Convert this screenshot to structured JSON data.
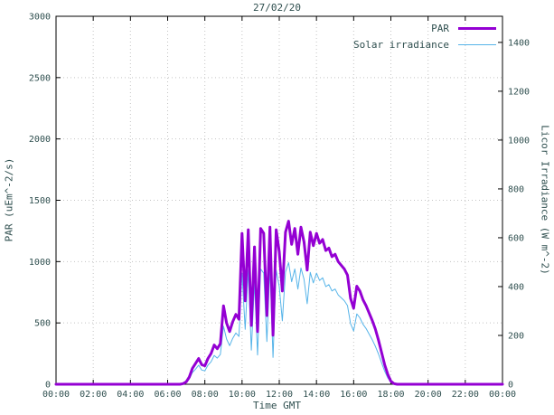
{
  "chart": {
    "title": "27/02/20",
    "xlabel": "Time GMT",
    "left_axis": {
      "label": "PAR (uEm^-2/s)",
      "range": [
        0,
        3000
      ],
      "ticks": [
        0,
        500,
        1000,
        1500,
        2000,
        2500,
        3000
      ]
    },
    "right_axis": {
      "label": "Licor Irradiance (W m^-2)",
      "range": [
        0,
        1507
      ],
      "ticks": [
        0,
        200,
        400,
        600,
        800,
        1000,
        1200,
        1400
      ]
    },
    "x_axis": {
      "tick_minutes": [
        0,
        120,
        240,
        360,
        480,
        600,
        720,
        840,
        960,
        1080,
        1200,
        1320,
        1440
      ],
      "tick_labels": [
        "00:00",
        "02:00",
        "04:00",
        "06:00",
        "08:00",
        "10:00",
        "12:00",
        "14:00",
        "16:00",
        "18:00",
        "20:00",
        "22:00",
        "00:00"
      ]
    },
    "legend": [
      {
        "label": "PAR",
        "color": "#9400d3",
        "line_width": 3
      },
      {
        "label": "Solar irradiance",
        "color": "#56b4e9",
        "line_width": 1
      }
    ],
    "colors": {
      "par": "#9400d3",
      "solar": "#56b4e9",
      "grid": "#c4c4c4",
      "border": "#000000",
      "text": "#2f4f4f",
      "background": "#ffffff"
    }
  },
  "chart_data": {
    "type": "line",
    "title": "27/02/20",
    "xlabel": "Time GMT",
    "grid": true,
    "legend_position": "top-right",
    "x_start_minute": 0,
    "x_step_minute": 10,
    "x_end_minute": 1440,
    "left_ylim": [
      0,
      3000
    ],
    "right_ylim": [
      0,
      1507
    ],
    "series": [
      {
        "name": "PAR",
        "axis": "left",
        "unit": "uEm^-2/s",
        "color": "#9400d3",
        "line_width": 3,
        "values": [
          0,
          0,
          0,
          0,
          0,
          0,
          0,
          0,
          0,
          0,
          0,
          0,
          0,
          0,
          0,
          0,
          0,
          0,
          0,
          0,
          0,
          0,
          0,
          0,
          0,
          0,
          0,
          0,
          0,
          0,
          0,
          0,
          0,
          0,
          0,
          0,
          0,
          0,
          0,
          0,
          0,
          5,
          20,
          60,
          130,
          170,
          210,
          160,
          150,
          210,
          250,
          320,
          290,
          330,
          640,
          500,
          430,
          510,
          570,
          530,
          1230,
          680,
          1260,
          480,
          1120,
          430,
          1270,
          1230,
          560,
          1280,
          400,
          1260,
          1080,
          760,
          1240,
          1330,
          1140,
          1270,
          1060,
          1280,
          1160,
          930,
          1240,
          1130,
          1230,
          1150,
          1180,
          1090,
          1110,
          1040,
          1060,
          1000,
          970,
          940,
          890,
          700,
          620,
          800,
          760,
          690,
          640,
          580,
          520,
          450,
          360,
          260,
          160,
          80,
          25,
          5,
          0,
          0,
          0,
          0,
          0,
          0,
          0,
          0,
          0,
          0,
          0,
          0,
          0,
          0,
          0,
          0,
          0,
          0,
          0,
          0,
          0,
          0,
          0,
          0,
          0,
          0,
          0,
          0,
          0,
          0,
          0,
          0,
          0,
          0,
          0
        ]
      },
      {
        "name": "Solar irradiance",
        "axis": "right",
        "unit": "W m^-2",
        "color": "#56b4e9",
        "line_width": 1,
        "values": [
          0,
          0,
          0,
          0,
          0,
          0,
          0,
          0,
          0,
          0,
          0,
          0,
          0,
          0,
          0,
          0,
          0,
          0,
          0,
          0,
          0,
          0,
          0,
          0,
          0,
          0,
          0,
          0,
          0,
          0,
          0,
          0,
          0,
          0,
          0,
          0,
          0,
          0,
          0,
          0,
          0,
          2,
          8,
          22,
          48,
          62,
          78,
          58,
          55,
          78,
          92,
          118,
          107,
          122,
          238,
          185,
          158,
          188,
          210,
          196,
          455,
          225,
          468,
          140,
          415,
          120,
          472,
          455,
          175,
          478,
          110,
          468,
          400,
          260,
          460,
          498,
          420,
          472,
          390,
          476,
          430,
          330,
          458,
          415,
          455,
          425,
          436,
          400,
          408,
          382,
          390,
          366,
          354,
          342,
          322,
          248,
          218,
          288,
          272,
          246,
          228,
          205,
          182,
          156,
          124,
          88,
          54,
          26,
          8,
          2,
          0,
          0,
          0,
          0,
          0,
          0,
          0,
          0,
          0,
          0,
          0,
          0,
          0,
          0,
          0,
          0,
          0,
          0,
          0,
          0,
          0,
          0,
          0,
          0,
          0,
          0,
          0,
          0,
          0,
          0,
          0,
          0,
          0,
          0,
          0
        ]
      }
    ]
  }
}
